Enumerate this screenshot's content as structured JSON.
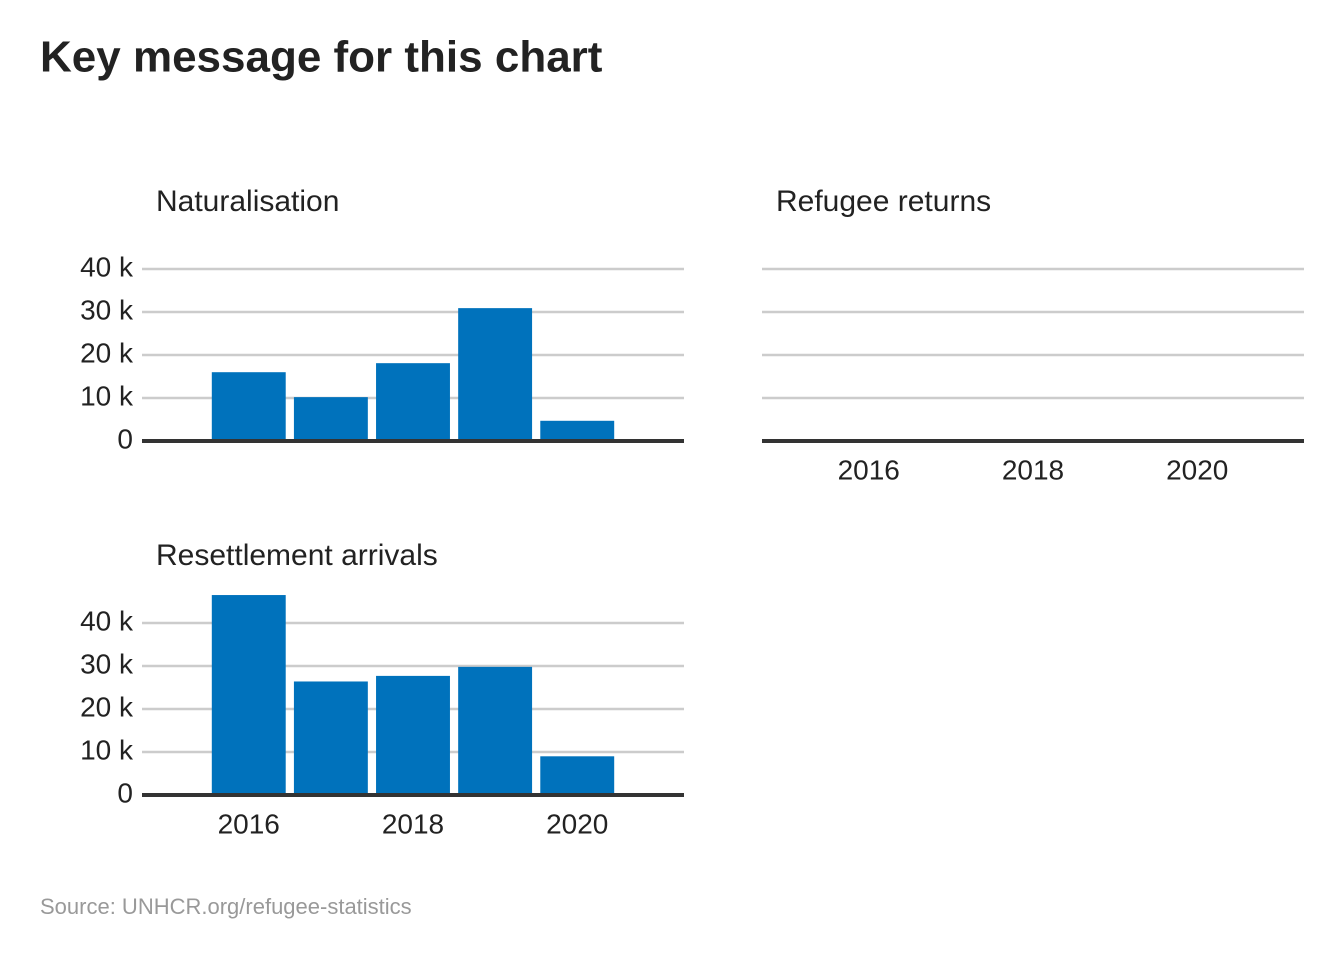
{
  "title": "Key message for this chart",
  "source": "Source: UNHCR.org/refugee-statistics",
  "chart_data": [
    {
      "type": "bar",
      "title": "Naturalisation",
      "x": [
        2016,
        2017,
        2018,
        2019,
        2020
      ],
      "values": [
        16000,
        10200,
        18100,
        30900,
        4700
      ],
      "color": "#0072bc",
      "xlim": [
        2014.7,
        2021.3
      ],
      "xticks": [
        2016,
        2018,
        2020
      ],
      "xtick_labels": false,
      "ylim": [
        0,
        47000
      ],
      "yticks": [
        {
          "value": 0,
          "label": "0"
        },
        {
          "value": 10000,
          "label": "10 k"
        },
        {
          "value": 20000,
          "label": "20 k"
        },
        {
          "value": 30000,
          "label": "30 k"
        },
        {
          "value": 40000,
          "label": "40 k"
        }
      ],
      "ytick_labels": true,
      "grid": true
    },
    {
      "type": "bar",
      "title": "Refugee returns",
      "x": [
        2016,
        2017,
        2018,
        2019,
        2020
      ],
      "values": [
        null,
        null,
        null,
        null,
        null
      ],
      "color": "#0072bc",
      "xlim": [
        2014.7,
        2021.3
      ],
      "xticks": [
        2016,
        2018,
        2020
      ],
      "xtick_labels": true,
      "ylim": [
        0,
        47000
      ],
      "yticks": [
        0,
        10000,
        20000,
        30000,
        40000
      ],
      "ytick_labels": false,
      "grid": true
    },
    {
      "type": "bar",
      "title": "Resettlement arrivals",
      "x": [
        2016,
        2017,
        2018,
        2019,
        2020
      ],
      "values": [
        46500,
        26400,
        27700,
        29800,
        9000
      ],
      "color": "#0072bc",
      "xlim": [
        2014.7,
        2021.3
      ],
      "xticks": [
        2016,
        2018,
        2020
      ],
      "xtick_labels": true,
      "ylim": [
        0,
        47000
      ],
      "yticks": [
        {
          "value": 0,
          "label": "0"
        },
        {
          "value": 10000,
          "label": "10 k"
        },
        {
          "value": 20000,
          "label": "20 k"
        },
        {
          "value": 30000,
          "label": "30 k"
        },
        {
          "value": 40000,
          "label": "40 k"
        }
      ],
      "ytick_labels": true,
      "grid": true
    }
  ]
}
